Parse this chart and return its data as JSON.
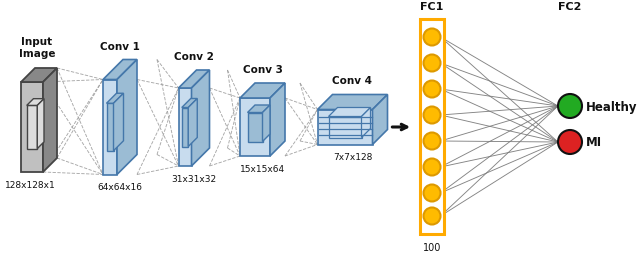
{
  "bg_color": "#ffffff",
  "input_label": "Input\nImage",
  "input_size": "128x128x1",
  "conv_labels": [
    "Conv 1",
    "Conv 2",
    "Conv 3",
    "Conv 4"
  ],
  "conv_sizes": [
    "64x64x16",
    "31x31x32",
    "15x15x64",
    "7x7x128"
  ],
  "fc1_label": "FC1",
  "fc1_size": "100",
  "fc2_label": "FC2",
  "output_labels": [
    "Healthy",
    "MI"
  ],
  "output_colors": [
    "#22aa22",
    "#dd2222"
  ],
  "neuron_color": "#ffbb00",
  "neuron_edge": "#dd9900",
  "box_face_color": "#c8dcee",
  "box_side_color": "#9bbcd4",
  "box_edge": "#4477aa",
  "input_face_color": "#c0c0c0",
  "input_side_color": "#888888",
  "input_edge": "#444444",
  "fc1_box_color": "#ffaa00",
  "arrow_color": "#111111",
  "dashed_color": "#999999",
  "text_color": "#111111"
}
